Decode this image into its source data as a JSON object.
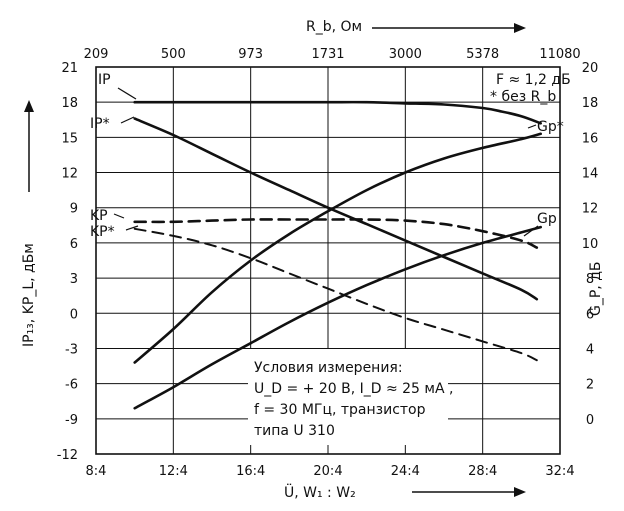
{
  "chart_data": {
    "type": "line",
    "x_axis": {
      "label": "Ü, W₁ : W₂",
      "ticks": [
        "8:4",
        "12:4",
        "16:4",
        "20:4",
        "24:4",
        "28:4",
        "32:4"
      ],
      "range": [
        8,
        32
      ]
    },
    "top_axis": {
      "label": "R_b,  Ом",
      "ticks": [
        "209",
        "500",
        "973",
        "1731",
        "3000",
        "5378",
        "11080"
      ]
    },
    "left_axis": {
      "label": "IP₁₃,  KP_L,  дБм",
      "ticks": [
        -12,
        -9,
        -6,
        -3,
        0,
        3,
        6,
        9,
        12,
        15,
        18,
        21
      ],
      "range": [
        -12,
        21
      ]
    },
    "right_axis": {
      "label": "G_P,  дБ",
      "ticks": [
        0,
        2,
        4,
        6,
        8,
        10,
        12,
        14,
        16,
        18,
        20
      ],
      "range": [
        -2,
        20
      ]
    },
    "grid": true,
    "series": [
      {
        "name": "IP",
        "axis": "left",
        "style": "solid",
        "width": 2.6,
        "x": [
          10,
          12,
          14,
          16,
          18,
          20,
          22,
          24,
          26,
          28,
          29,
          30,
          31
        ],
        "y": [
          18,
          18,
          18,
          18,
          18,
          18,
          18,
          17.9,
          17.8,
          17.5,
          17.2,
          16.8,
          16.2
        ]
      },
      {
        "name": "IP*",
        "axis": "left",
        "style": "solid",
        "width": 2.6,
        "x": [
          10,
          12,
          14,
          16,
          18,
          20,
          22,
          24,
          26,
          28,
          30,
          30.8
        ],
        "y": [
          16.6,
          15.2,
          13.6,
          12.0,
          10.5,
          9.0,
          7.6,
          6.2,
          4.8,
          3.4,
          2.0,
          1.2
        ]
      },
      {
        "name": "KP",
        "axis": "left",
        "style": "dashed",
        "width": 2.6,
        "x": [
          10,
          12,
          14,
          16,
          18,
          20,
          22,
          24,
          26,
          28,
          30,
          30.8
        ],
        "y": [
          7.8,
          7.8,
          7.9,
          8.0,
          8.0,
          8.0,
          8.0,
          7.9,
          7.6,
          7.0,
          6.2,
          5.6
        ]
      },
      {
        "name": "KP*",
        "axis": "left",
        "style": "dashed",
        "width": 2.0,
        "x": [
          10,
          12,
          14,
          16,
          18,
          20,
          22,
          24,
          26,
          28,
          30,
          30.8
        ],
        "y": [
          7.2,
          6.6,
          5.8,
          4.7,
          3.4,
          2.1,
          0.8,
          -0.4,
          -1.4,
          -2.4,
          -3.4,
          -4.0
        ]
      },
      {
        "name": "G_P*",
        "axis": "right",
        "style": "solid",
        "width": 2.6,
        "x": [
          10,
          12,
          14,
          16,
          18,
          20,
          22,
          24,
          26,
          28,
          30,
          31
        ],
        "y": [
          3.2,
          5.1,
          7.2,
          9.0,
          10.5,
          11.8,
          13.0,
          14.0,
          14.8,
          15.4,
          15.9,
          16.2
        ]
      },
      {
        "name": "G_P",
        "axis": "right",
        "style": "solid",
        "width": 2.6,
        "x": [
          10,
          12,
          14,
          16,
          18,
          20,
          22,
          24,
          26,
          28,
          30,
          31
        ],
        "y": [
          0.6,
          1.8,
          3.1,
          4.3,
          5.5,
          6.6,
          7.6,
          8.5,
          9.3,
          10.0,
          10.6,
          10.9
        ]
      }
    ],
    "series_label_text": {
      "IP": "IP",
      "IP*": "IP*",
      "KP": "KP",
      "KP*": "KP*",
      "G_P*": "Gp*",
      "G_P": "Gp"
    },
    "annotations": {
      "top_right": [
        "F ≈ 1,2 дБ",
        "* без R_b"
      ],
      "box_title": "Условия измерения:",
      "box_lines": [
        "U_D = + 20 В,  I_D ≈ 25 мА ,",
        "f = 30 МГц,  транзистор",
        "типа  U 310"
      ]
    }
  }
}
